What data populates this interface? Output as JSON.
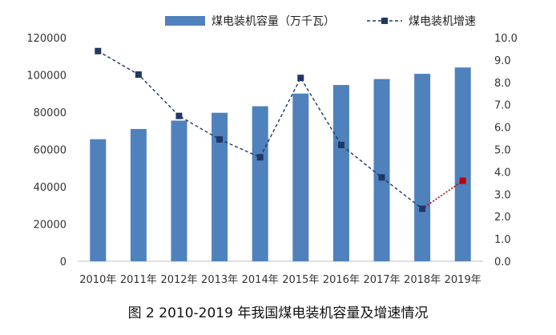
{
  "chart_data": {
    "type": "bar+line",
    "categories": [
      "2010年",
      "2011年",
      "2012年",
      "2013年",
      "2014年",
      "2015年",
      "2016年",
      "2017年",
      "2018年",
      "2019年"
    ],
    "series": [
      {
        "name": "煤电装机容量（万千瓦）",
        "type": "bar",
        "axis": "left",
        "color": "#4f81bd",
        "values": [
          65500,
          71000,
          75500,
          79700,
          83200,
          90000,
          94600,
          97800,
          100600,
          104000
        ]
      },
      {
        "name": "煤电装机增速",
        "type": "line",
        "axis": "right",
        "color": "#1f3864",
        "line_style": "dashed",
        "last_segment_color": "#c00000",
        "last_point_color": "#c00000",
        "values": [
          9.4,
          8.35,
          6.5,
          5.45,
          4.65,
          8.2,
          5.2,
          3.75,
          2.35,
          3.6
        ]
      }
    ],
    "y_left": {
      "min": 0,
      "max": 120000,
      "ticks": [
        "0",
        "20000",
        "40000",
        "60000",
        "80000",
        "100000",
        "120000"
      ]
    },
    "y_right": {
      "min": 0,
      "max": 10,
      "ticks": [
        "0.0",
        "1.0",
        "2.0",
        "3.0",
        "4.0",
        "5.0",
        "6.0",
        "7.0",
        "8.0",
        "9.0",
        "10.0"
      ]
    },
    "grid": false,
    "legend_position": "top",
    "caption": "图 2 2010-2019 年我国煤电装机容量及增速情况"
  }
}
